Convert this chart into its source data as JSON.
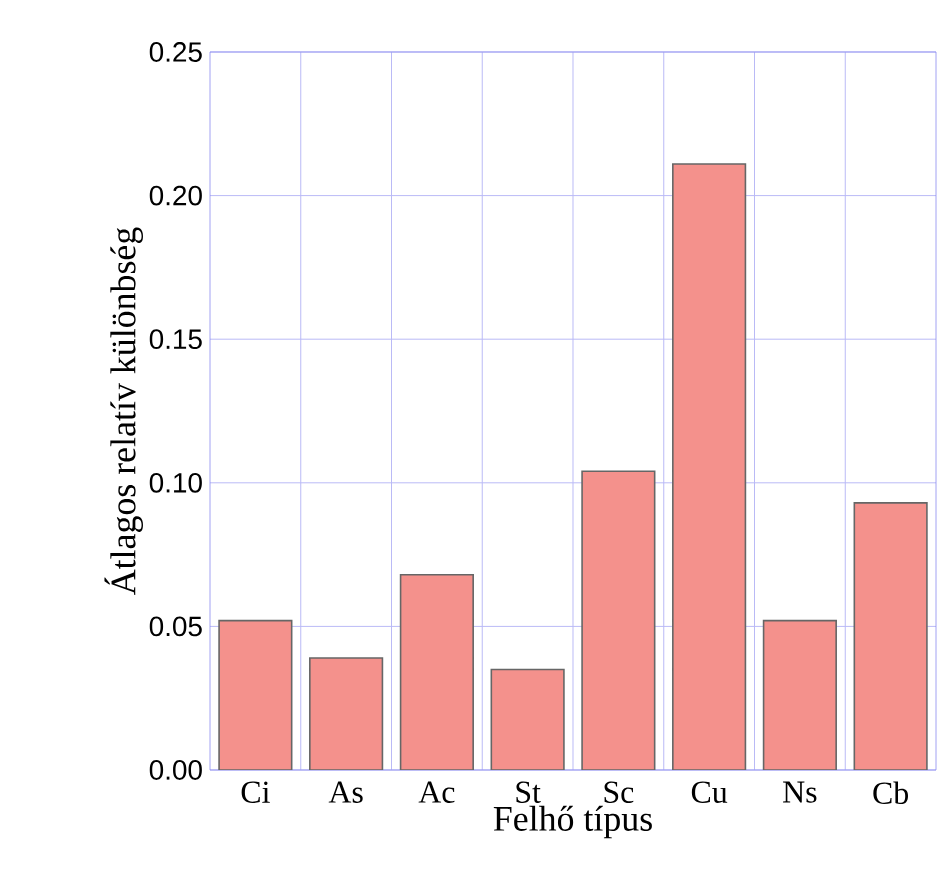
{
  "chart_data": {
    "type": "bar",
    "xlabel": "Felhő típus",
    "ylabel": "Átlagos relatív különbség",
    "categories": [
      "Ci",
      "As",
      "Ac",
      "St",
      "Sc",
      "Cu",
      "Ns",
      "Cb"
    ],
    "values": [
      0.052,
      0.039,
      0.068,
      0.035,
      0.104,
      0.211,
      0.052,
      0.093
    ],
    "color": "#f4918c",
    "ylim": [
      0,
      0.25
    ],
    "yticks": [
      {
        "value": 0,
        "label": "0.00"
      },
      {
        "value": 0.05,
        "label": "0.05"
      },
      {
        "value": 0.1,
        "label": "0.10"
      },
      {
        "value": 0.15,
        "label": "0.15"
      },
      {
        "value": 0.2,
        "label": "0.20"
      },
      {
        "value": 0.25,
        "label": "0.25"
      }
    ],
    "grid": true
  }
}
